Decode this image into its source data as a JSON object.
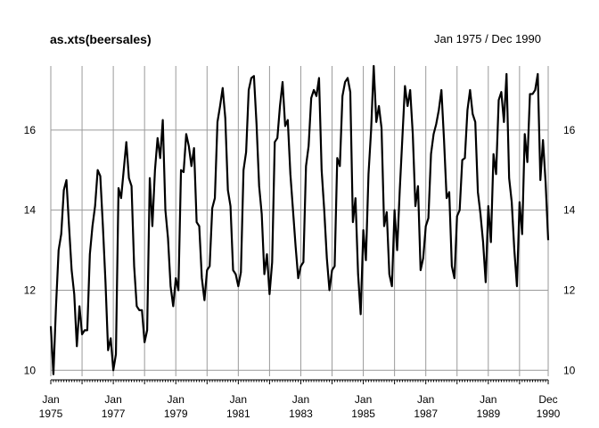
{
  "chart_data": {
    "type": "line",
    "title": "as.xts(beersales)",
    "subtitle": "Jan 1975 / Dec 1990",
    "xlabel": "",
    "ylabel": "",
    "ylim": [
      9.85,
      17.6
    ],
    "y_ticks": [
      "10",
      "12",
      "14",
      "16"
    ],
    "x_ticks": [
      {
        "month": "Jan",
        "year": "1975"
      },
      {
        "month": "Jan",
        "year": "1977"
      },
      {
        "month": "Jan",
        "year": "1979"
      },
      {
        "month": "Jan",
        "year": "1981"
      },
      {
        "month": "Jan",
        "year": "1983"
      },
      {
        "month": "Jan",
        "year": "1985"
      },
      {
        "month": "Jan",
        "year": "1987"
      },
      {
        "month": "Jan",
        "year": "1989"
      },
      {
        "month": "Dec",
        "year": "1990"
      }
    ],
    "grid": true,
    "x_start": "1975-01",
    "x_end": "1990-12",
    "series": [
      {
        "frequency": "monthly",
        "color": "#000000",
        "values": [
          11.1,
          9.9,
          11.6,
          13.0,
          13.4,
          14.5,
          14.75,
          13.6,
          12.5,
          11.9,
          10.6,
          11.6,
          10.9,
          11.0,
          11.0,
          12.9,
          13.6,
          14.1,
          15.0,
          14.85,
          13.6,
          12.2,
          10.5,
          10.8,
          10.0,
          10.4,
          14.55,
          14.3,
          15.0,
          15.7,
          14.8,
          14.6,
          12.6,
          11.6,
          11.5,
          11.5,
          10.7,
          11.0,
          14.8,
          13.6,
          15.0,
          15.8,
          15.3,
          16.25,
          14.0,
          13.3,
          12.1,
          11.6,
          12.3,
          12.0,
          15.0,
          14.95,
          15.9,
          15.6,
          15.1,
          15.55,
          13.7,
          13.6,
          12.3,
          11.75,
          12.5,
          12.6,
          14.05,
          14.3,
          16.2,
          16.6,
          17.05,
          16.3,
          14.5,
          14.1,
          12.5,
          12.4,
          12.1,
          12.45,
          15.0,
          15.45,
          17.0,
          17.3,
          17.35,
          16.15,
          14.6,
          13.9,
          12.4,
          12.9,
          11.9,
          12.7,
          15.7,
          15.8,
          16.6,
          17.2,
          16.1,
          16.25,
          14.9,
          14.0,
          13.1,
          12.3,
          12.6,
          12.7,
          15.1,
          15.6,
          16.8,
          17.0,
          16.85,
          17.3,
          15.0,
          14.0,
          12.8,
          12.0,
          12.5,
          12.6,
          15.3,
          15.1,
          16.85,
          17.2,
          17.3,
          16.95,
          13.7,
          14.3,
          12.4,
          11.4,
          13.5,
          12.75,
          14.9,
          16.0,
          17.6,
          16.2,
          16.6,
          16.05,
          13.6,
          13.95,
          12.4,
          12.1,
          14.0,
          13.0,
          14.5,
          15.8,
          17.1,
          16.6,
          17.0,
          15.9,
          14.1,
          14.6,
          12.5,
          12.8,
          13.6,
          13.8,
          15.4,
          15.9,
          16.15,
          16.5,
          17.0,
          15.75,
          14.3,
          14.45,
          12.6,
          12.3,
          13.85,
          14.0,
          15.25,
          15.3,
          16.5,
          17.0,
          16.4,
          16.2,
          14.45,
          13.9,
          13.2,
          12.2,
          14.1,
          13.2,
          15.4,
          14.9,
          16.75,
          16.95,
          16.2,
          17.4,
          14.8,
          14.2,
          13.0,
          12.1,
          14.2,
          13.4,
          15.9,
          15.2,
          16.9,
          16.9,
          17.0,
          17.4,
          14.75,
          15.75,
          14.7,
          13.25
        ]
      }
    ]
  }
}
